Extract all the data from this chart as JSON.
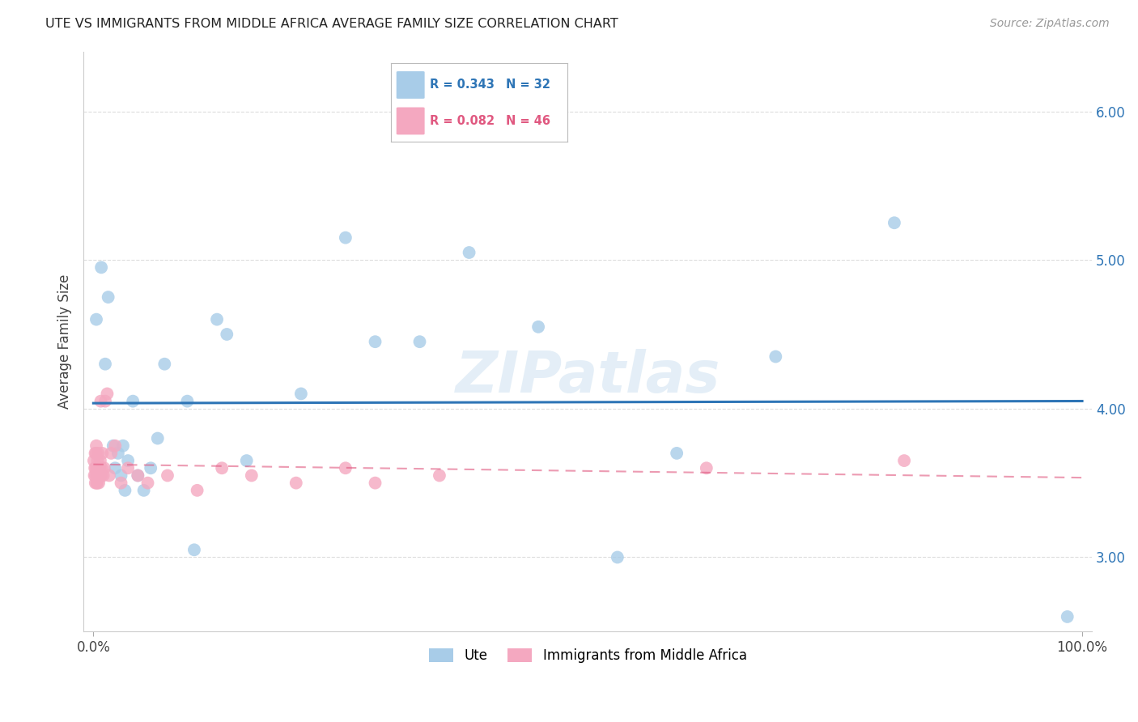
{
  "title": "UTE VS IMMIGRANTS FROM MIDDLE AFRICA AVERAGE FAMILY SIZE CORRELATION CHART",
  "source": "Source: ZipAtlas.com",
  "ylabel": "Average Family Size",
  "yticks": [
    3.0,
    4.0,
    5.0,
    6.0
  ],
  "legend_blue_label": "Ute",
  "legend_pink_label": "Immigrants from Middle Africa",
  "blue_color": "#A8CCE8",
  "blue_line_color": "#2E75B6",
  "pink_color": "#F4A8C0",
  "pink_line_color": "#E05880",
  "watermark": "ZIPatlas",
  "background_color": "#FFFFFF",
  "ute_x": [
    0.3,
    0.8,
    1.2,
    1.5,
    2.0,
    2.2,
    2.5,
    2.8,
    3.0,
    3.2,
    3.5,
    4.0,
    4.5,
    5.1,
    5.8,
    6.5,
    7.2,
    9.5,
    10.2,
    12.5,
    13.5,
    15.5,
    21.0,
    25.5,
    28.5,
    33.0,
    38.0,
    45.0,
    53.0,
    59.0,
    69.0,
    81.0,
    98.5
  ],
  "ute_y": [
    4.6,
    4.95,
    4.3,
    4.75,
    3.75,
    3.6,
    3.7,
    3.55,
    3.75,
    3.45,
    3.65,
    4.05,
    3.55,
    3.45,
    3.6,
    3.8,
    4.3,
    4.05,
    3.05,
    4.6,
    4.5,
    3.65,
    4.1,
    5.15,
    4.45,
    4.45,
    5.05,
    4.55,
    3.0,
    3.7,
    4.35,
    5.25,
    2.6
  ],
  "immigrant_x": [
    0.05,
    0.1,
    0.15,
    0.18,
    0.2,
    0.22,
    0.25,
    0.28,
    0.3,
    0.32,
    0.35,
    0.38,
    0.4,
    0.42,
    0.45,
    0.48,
    0.5,
    0.55,
    0.6,
    0.65,
    0.7,
    0.75,
    0.8,
    0.85,
    0.9,
    1.0,
    1.1,
    1.2,
    1.4,
    1.6,
    1.8,
    2.2,
    2.8,
    3.5,
    4.5,
    5.5,
    7.5,
    10.5,
    13.0,
    16.0,
    20.5,
    25.5,
    28.5,
    35.0,
    62.0,
    82.0
  ],
  "immigrant_y": [
    3.65,
    3.55,
    3.6,
    3.7,
    3.5,
    3.55,
    3.6,
    3.7,
    3.75,
    3.5,
    3.55,
    3.6,
    3.5,
    3.65,
    3.55,
    3.7,
    3.6,
    3.5,
    3.55,
    3.6,
    3.65,
    4.05,
    3.55,
    3.6,
    3.7,
    3.55,
    3.6,
    4.05,
    4.1,
    3.55,
    3.7,
    3.75,
    3.5,
    3.6,
    3.55,
    3.5,
    3.55,
    3.45,
    3.6,
    3.55,
    3.5,
    3.6,
    3.5,
    3.55,
    3.6,
    3.65
  ]
}
